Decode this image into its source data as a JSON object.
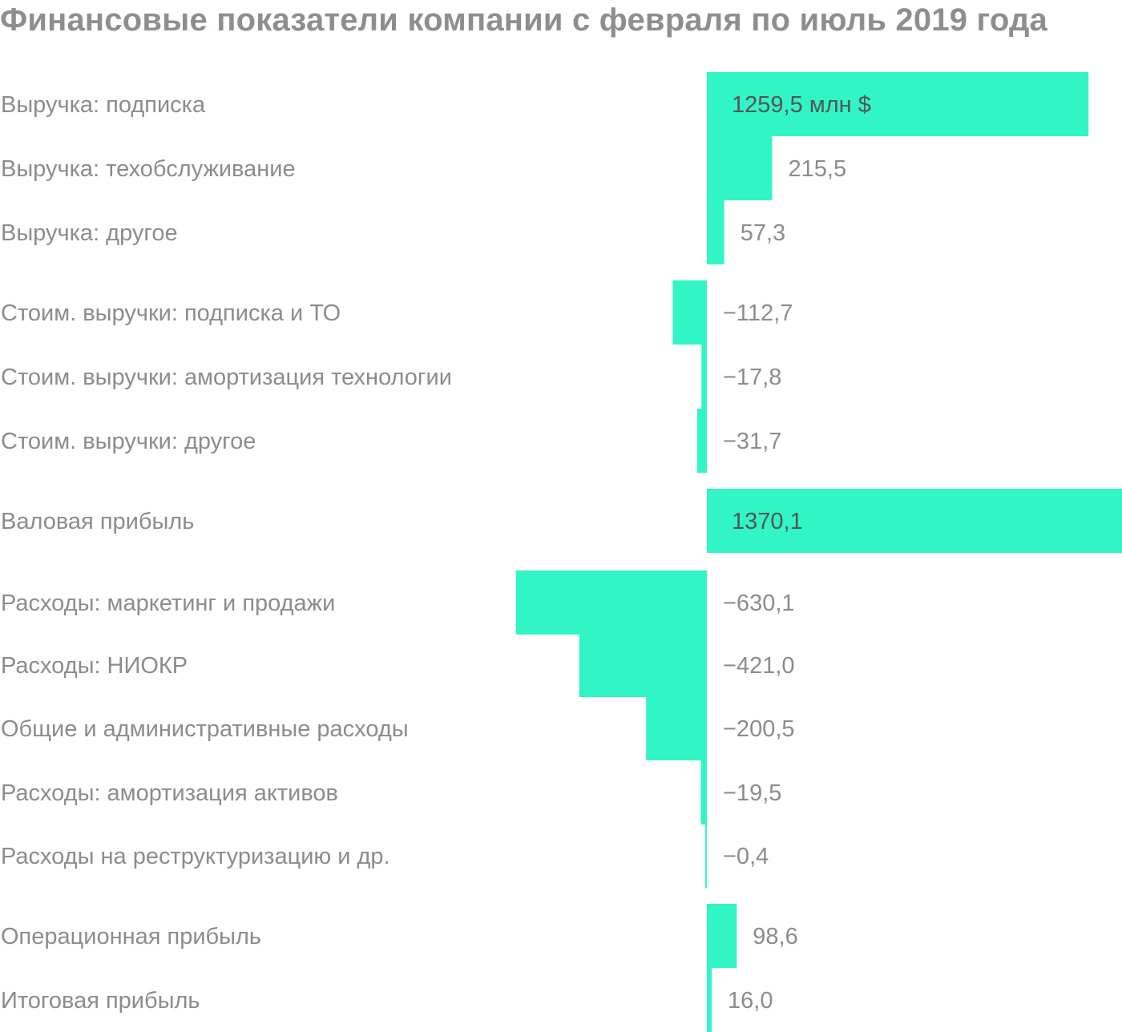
{
  "chart_data": {
    "type": "bar",
    "orientation": "horizontal",
    "title": "Финансовые показатели компании с февраля по июль 2019 года",
    "xlabel": "",
    "ylabel": "",
    "unit": "млн $",
    "grid": false,
    "legend": "none",
    "bar_color": "#31f5c4",
    "categories": [
      "Выручка: подписка",
      "Выручка: техобслуживание",
      "Выручка: другое",
      "Стоим. выручки: подписка и ТО",
      "Стоим. выручки: амортизация технологии",
      "Стоим. выручки: другое",
      "Валовая прибыль",
      "Расходы: маркетинг и продажи",
      "Расходы: НИОКР",
      "Общие и административные расходы",
      "Расходы: амортизация активов",
      "Расходы на реструктуризацию и др.",
      "Операционная прибыль",
      "Итоговая прибыль"
    ],
    "values": [
      1259.5,
      215.5,
      57.3,
      -112.7,
      -17.8,
      -31.7,
      1370.1,
      -630.1,
      -421.0,
      -200.5,
      -19.5,
      -0.4,
      98.6,
      16.0
    ],
    "value_labels": [
      "1259,5 млн $",
      "215,5",
      "57,3",
      "−112,7",
      "−17,8",
      "−31,7",
      "1370,1",
      "−630,1",
      "−421,0",
      "−200,5",
      "−19,5",
      "−0,4",
      "98,6",
      "16,0"
    ]
  }
}
